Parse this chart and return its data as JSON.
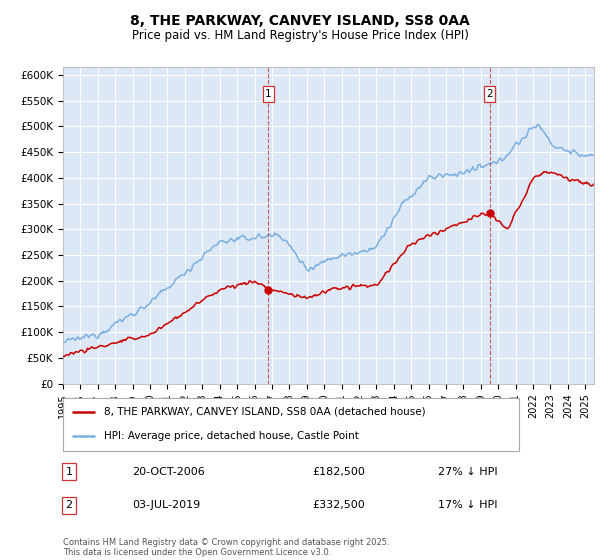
{
  "title": "8, THE PARKWAY, CANVEY ISLAND, SS8 0AA",
  "subtitle": "Price paid vs. HM Land Registry's House Price Index (HPI)",
  "ylabel_ticks": [
    "£0",
    "£50K",
    "£100K",
    "£150K",
    "£200K",
    "£250K",
    "£300K",
    "£350K",
    "£400K",
    "£450K",
    "£500K",
    "£550K",
    "£600K"
  ],
  "ytick_values": [
    0,
    50000,
    100000,
    150000,
    200000,
    250000,
    300000,
    350000,
    400000,
    450000,
    500000,
    550000,
    600000
  ],
  "ylim": [
    0,
    615000
  ],
  "plot_bg": "#dce8f5",
  "red_line_color": "#cc0000",
  "blue_line_color": "#7aafe0",
  "grid_color": "#ffffff",
  "sale1_x": 2006.8,
  "sale1_y": 182500,
  "sale2_x": 2019.5,
  "sale2_y": 332500,
  "legend1": "8, THE PARKWAY, CANVEY ISLAND, SS8 0AA (detached house)",
  "legend2": "HPI: Average price, detached house, Castle Point",
  "annotation1": {
    "label": "1",
    "date": "20-OCT-2006",
    "price": "£182,500",
    "hpi": "27% ↓ HPI"
  },
  "annotation2": {
    "label": "2",
    "date": "03-JUL-2019",
    "price": "£332,500",
    "hpi": "17% ↓ HPI"
  },
  "footer": "Contains HM Land Registry data © Crown copyright and database right 2025.\nThis data is licensed under the Open Government Licence v3.0.",
  "xmin": 1995.0,
  "xmax": 2025.5
}
